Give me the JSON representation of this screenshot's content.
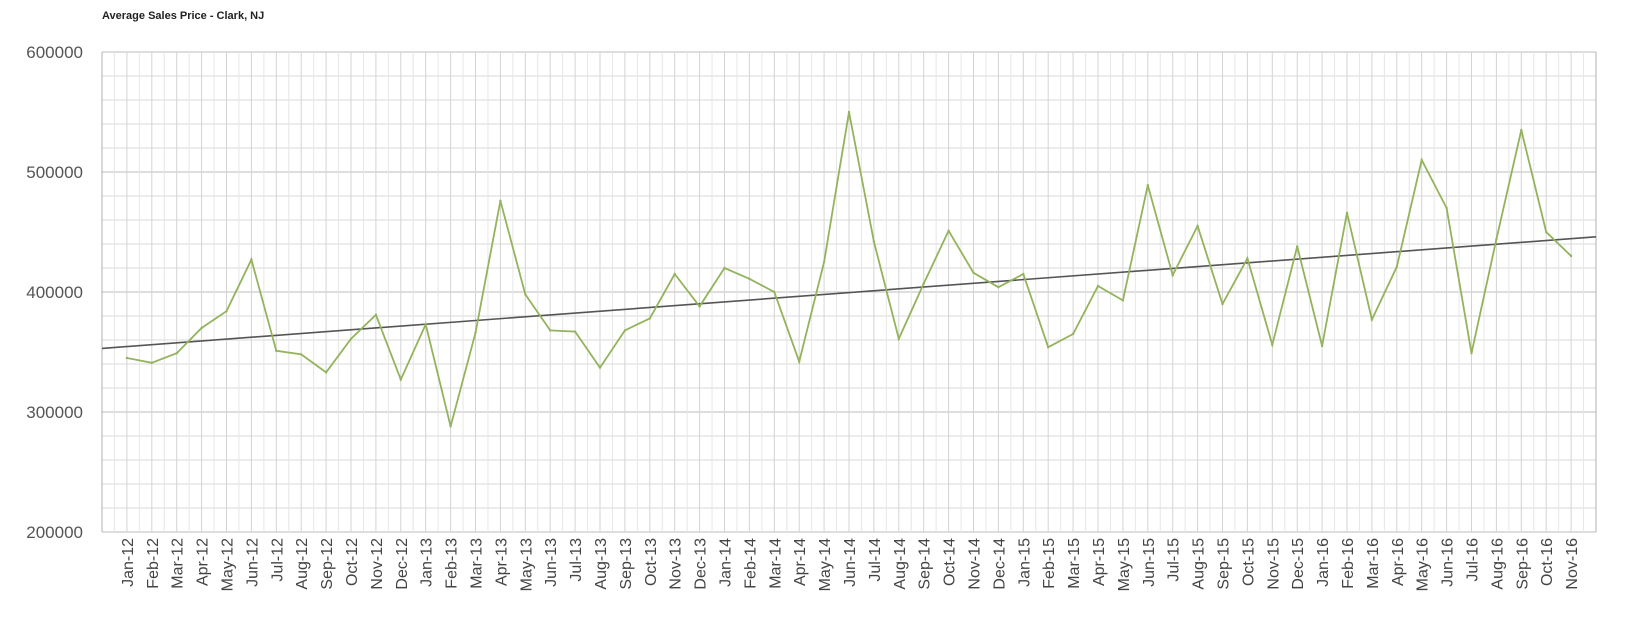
{
  "chart_data": {
    "type": "line",
    "title": "Average Sales Price - Clark, NJ",
    "xlabel": "",
    "ylabel": "",
    "ylim": [
      200000,
      600000
    ],
    "yticks": [
      200000,
      300000,
      400000,
      500000,
      600000
    ],
    "grid": true,
    "legend": "none",
    "categories": [
      "Jan-12",
      "Feb-12",
      "Mar-12",
      "Apr-12",
      "May-12",
      "Jun-12",
      "Jul-12",
      "Aug-12",
      "Sep-12",
      "Oct-12",
      "Nov-12",
      "Dec-12",
      "Jan-13",
      "Feb-13",
      "Mar-13",
      "Apr-13",
      "May-13",
      "Jun-13",
      "Jul-13",
      "Aug-13",
      "Sep-13",
      "Oct-13",
      "Nov-13",
      "Dec-13",
      "Jan-14",
      "Feb-14",
      "Mar-14",
      "Apr-14",
      "May-14",
      "Jun-14",
      "Jul-14",
      "Aug-14",
      "Sep-14",
      "Oct-14",
      "Nov-14",
      "Dec-14",
      "Jan-15",
      "Feb-15",
      "Mar-15",
      "Apr-15",
      "May-15",
      "Jun-15",
      "Jul-15",
      "Aug-15",
      "Sep-15",
      "Oct-15",
      "Nov-15",
      "Dec-15",
      "Jan-16",
      "Feb-16",
      "Mar-16",
      "Apr-16",
      "May-16",
      "Jun-16",
      "Jul-16",
      "Aug-16",
      "Sep-16",
      "Oct-16",
      "Nov-16"
    ],
    "series": [
      {
        "values": [
          345000,
          341000,
          349000,
          370000,
          384000,
          427000,
          351000,
          348000,
          333000,
          361000,
          381000,
          327000,
          373000,
          288000,
          366000,
          476000,
          398000,
          368000,
          367000,
          337000,
          368000,
          378000,
          415000,
          388000,
          420000,
          411000,
          400000,
          342000,
          425000,
          550000,
          442000,
          361000,
          407000,
          451000,
          416000,
          404000,
          415000,
          354000,
          365000,
          405000,
          393000,
          489000,
          414000,
          455000,
          390000,
          428000,
          356000,
          438000,
          355000,
          466000,
          377000,
          421000,
          510000,
          470000,
          349000,
          444000,
          535000,
          450000,
          430000
        ],
        "color": "#93b35c"
      },
      {
        "type": "trendline",
        "start": 353000,
        "end": 446000,
        "color": "#555555"
      }
    ]
  }
}
